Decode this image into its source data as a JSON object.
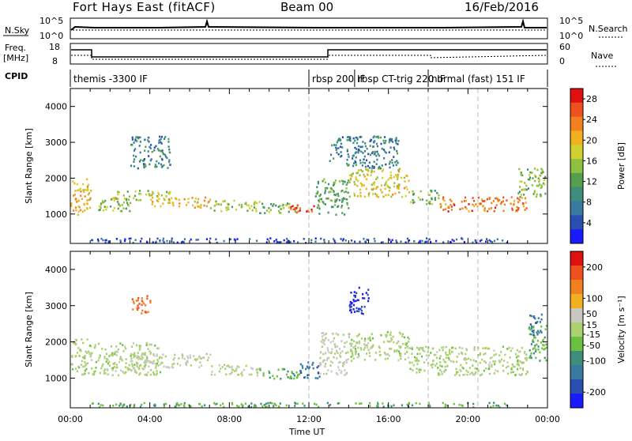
{
  "header": {
    "station": "Fort Hays East (fitACF)",
    "beam": "Beam 00",
    "date": "16/Feb/2016"
  },
  "strip": {
    "nsky_label": "N.Sky",
    "nsky_ticks": [
      "10^5",
      "10^0"
    ],
    "nsearch_label": "N.Search",
    "nsearch_ticks": [
      "10^5",
      "10^0"
    ],
    "freq_label": "Freq.",
    "freq_unit": "[MHz]",
    "freq_ticks": [
      "18",
      "8"
    ],
    "nave_label": "Nave",
    "nave_ticks": [
      "60",
      "0"
    ],
    "cpid_label": "CPID",
    "cpid_segments": [
      {
        "label": "themis -3300 IF",
        "start_hour": 0.0
      },
      {
        "label": "rbsp 200 IF",
        "start_hour": 12.0
      },
      {
        "label": "rbsp CT-trig 220 IF",
        "start_hour": 14.3
      },
      {
        "label": "normal (fast) 151 IF",
        "start_hour": 18.0
      }
    ]
  },
  "colors": {
    "power_scale": [
      "#1a1aff",
      "#2a4fb0",
      "#3a7aa0",
      "#3c8f7a",
      "#55a04f",
      "#8fc040",
      "#d0d030",
      "#f0b020",
      "#f08020",
      "#f05020",
      "#e01010"
    ],
    "velocity_scale": [
      "#1a1aff",
      "#2a4fb0",
      "#3a7aa0",
      "#3c8f7a",
      "#6cc040",
      "#aad070",
      "#c8c8c0",
      "#f0b020",
      "#f08020",
      "#f05020",
      "#e01010"
    ]
  },
  "chart_data": [
    {
      "type": "heatmap",
      "title": "Power",
      "xlabel": "Time UT",
      "ylabel": "Slant Range [km]",
      "xlim": [
        0,
        24
      ],
      "ylim": [
        180,
        4500
      ],
      "x_ticks": [
        "00:00",
        "04:00",
        "08:00",
        "12:00",
        "16:00",
        "20:00",
        "00:00"
      ],
      "y_ticks": [
        1000,
        2000,
        3000,
        4000
      ],
      "colorbar_label": "Power [dB]",
      "colorbar_ticks": [
        4,
        8,
        12,
        16,
        20,
        24,
        28
      ],
      "colorbar_range": [
        0,
        30
      ],
      "bands": [
        {
          "t": [
            0.0,
            1.0
          ],
          "r": [
            1000,
            2000
          ],
          "value": 20
        },
        {
          "t": [
            1.0,
            3.0
          ],
          "r": [
            1100,
            1400
          ],
          "value": 14
        },
        {
          "t": [
            2.0,
            5.0
          ],
          "r": [
            1400,
            1700
          ],
          "value": 16
        },
        {
          "t": [
            4.0,
            7.0
          ],
          "r": [
            1200,
            1500
          ],
          "value": 20
        },
        {
          "t": [
            7.0,
            9.5
          ],
          "r": [
            1100,
            1400
          ],
          "value": 15
        },
        {
          "t": [
            9.5,
            11.5
          ],
          "r": [
            1050,
            1350
          ],
          "value": 14
        },
        {
          "t": [
            11.0,
            12.3
          ],
          "r": [
            1050,
            1300
          ],
          "value": 26
        },
        {
          "t": [
            12.3,
            14.0
          ],
          "r": [
            1000,
            2000
          ],
          "value": 12
        },
        {
          "t": [
            14.0,
            17.0
          ],
          "r": [
            1500,
            2300
          ],
          "value": 18
        },
        {
          "t": [
            17.0,
            18.5
          ],
          "r": [
            1300,
            1700
          ],
          "value": 14
        },
        {
          "t": [
            18.5,
            23.0
          ],
          "r": [
            1100,
            1500
          ],
          "value": 24
        },
        {
          "t": [
            22.5,
            24.0
          ],
          "r": [
            1500,
            2300
          ],
          "value": 14
        },
        {
          "t": [
            3.0,
            5.0
          ],
          "r": [
            2300,
            3200
          ],
          "value": 8
        },
        {
          "t": [
            13.0,
            16.5
          ],
          "r": [
            2300,
            3200
          ],
          "value": 8
        },
        {
          "t": [
            1.0,
            22.0
          ],
          "r": [
            200,
            350
          ],
          "value": 4
        }
      ]
    },
    {
      "type": "heatmap",
      "title": "Velocity",
      "xlabel": "Time UT",
      "ylabel": "Slant Range [km]",
      "xlim": [
        0,
        24
      ],
      "ylim": [
        180,
        4500
      ],
      "x_ticks": [
        "00:00",
        "04:00",
        "08:00",
        "12:00",
        "16:00",
        "20:00",
        "00:00"
      ],
      "y_ticks": [
        1000,
        2000,
        3000,
        4000
      ],
      "colorbar_label": "Velocity [m s⁻¹]",
      "colorbar_ticks": [
        200,
        100,
        50,
        15,
        -15,
        -50,
        -100,
        -200
      ],
      "colorbar_range": [
        -250,
        250
      ],
      "bands": [
        {
          "t": [
            0.0,
            1.0
          ],
          "r": [
            1100,
            2100
          ],
          "value": 0
        },
        {
          "t": [
            1.0,
            4.5
          ],
          "r": [
            1100,
            2000
          ],
          "value": 0
        },
        {
          "t": [
            3.0,
            7.0
          ],
          "r": [
            1300,
            1700
          ],
          "value": 30
        },
        {
          "t": [
            7.0,
            9.5
          ],
          "r": [
            1100,
            1400
          ],
          "value": 15
        },
        {
          "t": [
            9.5,
            11.5
          ],
          "r": [
            1000,
            1300
          ],
          "value": -60
        },
        {
          "t": [
            11.5,
            12.5
          ],
          "r": [
            1000,
            1500
          ],
          "value": -150
        },
        {
          "t": [
            12.5,
            14.0
          ],
          "r": [
            1100,
            2300
          ],
          "value": 30
        },
        {
          "t": [
            14.0,
            17.0
          ],
          "r": [
            1500,
            2300
          ],
          "value": 0
        },
        {
          "t": [
            17.0,
            23.0
          ],
          "r": [
            1100,
            1900
          ],
          "value": 0
        },
        {
          "t": [
            23.0,
            24.0
          ],
          "r": [
            1500,
            2500
          ],
          "value": -60
        },
        {
          "t": [
            3.0,
            4.0
          ],
          "r": [
            2800,
            3300
          ],
          "value": 150
        },
        {
          "t": [
            14.0,
            15.0
          ],
          "r": [
            2800,
            3600
          ],
          "value": -200
        },
        {
          "t": [
            23.0,
            23.7
          ],
          "r": [
            2200,
            2800
          ],
          "value": -150
        },
        {
          "t": [
            1.0,
            22.0
          ],
          "r": [
            200,
            350
          ],
          "value": -60
        }
      ]
    }
  ]
}
